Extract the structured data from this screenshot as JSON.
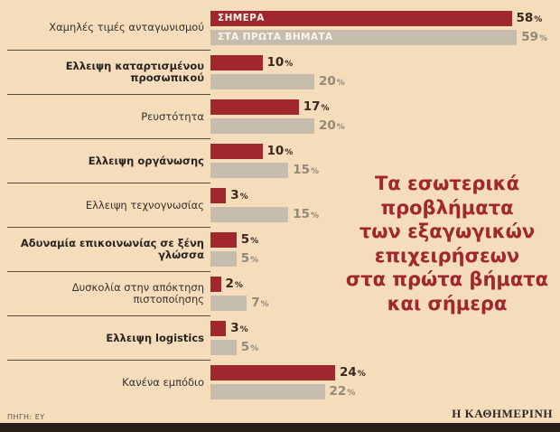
{
  "chart_data": {
    "type": "bar",
    "orientation": "horizontal",
    "unit": "%",
    "xlim": [
      0,
      60
    ],
    "legend_position": "inside-first-bars",
    "series_names": [
      "ΣΗΜΕΡΑ",
      "ΣΤΑ ΠΡΩΤΑ ΒΗΜΑΤΑ"
    ],
    "categories": [
      {
        "label": "Χαμηλές τιμές ανταγωνισμού",
        "bold": false,
        "today": 58,
        "early": 59
      },
      {
        "label": "Ελλειψη καταρτισμένου προσωπικού",
        "bold": true,
        "today": 10,
        "early": 20
      },
      {
        "label": "Ρευστότητα",
        "bold": false,
        "today": 17,
        "early": 20
      },
      {
        "label": "Ελλειψη οργάνωσης",
        "bold": true,
        "today": 10,
        "early": 15
      },
      {
        "label": "Ελλειψη τεχνογνωσίας",
        "bold": false,
        "today": 3,
        "early": 15
      },
      {
        "label": "Αδυναμία επικοινωνίας σε ξένη γλώσσα",
        "bold": true,
        "today": 5,
        "early": 5
      },
      {
        "label": "Δυσκολία στην απόκτηση πιστοποίησης",
        "bold": false,
        "today": 2,
        "early": 7
      },
      {
        "label": "Ελλειψη logistics",
        "bold": true,
        "today": 3,
        "early": 5
      },
      {
        "label": "Κανένα εμπόδιο",
        "bold": false,
        "today": 24,
        "early": 22
      }
    ],
    "title": "Τα εσωτερικά προβλήματα των εξαγωγικών επιχειρήσεων στα πρώτα βήματα και σήμερα",
    "colors": {
      "today_bar": "#a0272c",
      "early_bar": "#c6bcae",
      "background": "#f5dcbb",
      "title_text": "#a0272c"
    }
  },
  "title_lines": [
    "Τα εσωτερικά",
    "προβλήματα",
    "των εξαγωγικών",
    "επιχειρήσεων",
    "στα πρώτα βήματα",
    "και σήμερα"
  ],
  "footer": {
    "source": "ΠΗΓΗ: ΕΥ",
    "brand": "Η ΚΑΘΗΜΕΡΙΝΗ"
  }
}
